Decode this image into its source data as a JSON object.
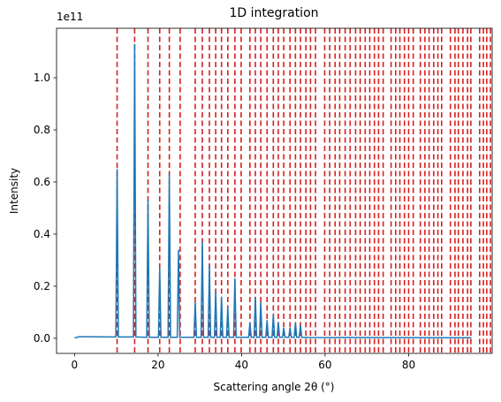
{
  "chart_data": {
    "type": "line",
    "title": "1D integration",
    "x_label": "Scattering angle 2θ (°)",
    "y_label": "Intensity",
    "y_offset_label": "1e11",
    "xlim": [
      -4.3,
      100
    ],
    "ylim": [
      -0.058,
      1.19
    ],
    "xticks": [
      0,
      20,
      40,
      60,
      80
    ],
    "yticks": [
      {
        "value": 0,
        "label": "0.0"
      },
      0.2,
      0.4,
      0.6,
      0.8,
      {
        "value": 1,
        "label": "1.0"
      }
    ],
    "series": [
      {
        "color": "#1f77b4",
        "x": [
          0,
          0.5,
          1,
          3,
          9.9,
          10.2,
          10.5,
          14.1,
          14.4,
          14.7,
          17.3,
          17.6,
          17.9,
          20.1,
          20.4,
          20.7,
          22.4,
          22.7,
          23.0,
          24.6,
          24.9,
          25.2,
          28.6,
          28.9,
          29.2,
          30.3,
          30.6,
          30.9,
          32.0,
          32.3,
          32.6,
          33.5,
          33.8,
          34.1,
          34.9,
          35.2,
          35.5,
          36.4,
          36.7,
          37.0,
          38.1,
          38.4,
          38.7,
          41.7,
          42.0,
          42.3,
          43.0,
          43.3,
          43.6,
          44.3,
          44.6,
          44.9,
          45.8,
          46.1,
          46.4,
          47.3,
          47.6,
          47.9,
          48.5,
          48.8,
          49.1,
          49.8,
          50.1,
          50.4,
          51.3,
          51.6,
          51.9,
          52.6,
          52.9,
          53.2,
          53.8,
          54.1,
          54.4,
          56,
          95
        ],
        "values": [
          0.002,
          0.003,
          0.006,
          0.006,
          0.005,
          0.65,
          0.005,
          0.005,
          1.13,
          0.005,
          0.004,
          0.53,
          0.004,
          0.004,
          0.27,
          0.004,
          0.004,
          0.63,
          0.004,
          0.004,
          0.34,
          0.004,
          0.004,
          0.14,
          0.004,
          0.004,
          0.37,
          0.004,
          0.004,
          0.28,
          0.004,
          0.004,
          0.18,
          0.004,
          0.004,
          0.16,
          0.004,
          0.004,
          0.12,
          0.004,
          0.004,
          0.23,
          0.004,
          0.004,
          0.06,
          0.004,
          0.004,
          0.16,
          0.004,
          0.004,
          0.14,
          0.004,
          0.004,
          0.07,
          0.004,
          0.004,
          0.09,
          0.004,
          0.004,
          0.06,
          0.004,
          0.004,
          0.04,
          0.004,
          0.004,
          0.04,
          0.004,
          0.004,
          0.06,
          0.004,
          0.004,
          0.05,
          0.004,
          0.003,
          0.002
        ]
      }
    ],
    "vlines_color": "#d62020",
    "vlines": [
      10.2,
      14.4,
      17.6,
      20.4,
      22.7,
      25.3,
      28.9,
      30.6,
      32.3,
      33.8,
      35.2,
      36.7,
      38.4,
      39.9,
      42.0,
      43.3,
      44.6,
      46.1,
      47.6,
      48.8,
      50.1,
      51.6,
      52.9,
      54.1,
      55.4,
      56.5,
      57.7,
      59.9,
      61.1,
      62.4,
      63.5,
      64.8,
      66.0,
      67.3,
      68.4,
      69.6,
      70.7,
      71.8,
      72.8,
      73.9,
      75.8,
      76.9,
      77.9,
      79.0,
      80.0,
      81.1,
      82.8,
      83.9,
      84.9,
      86.0,
      87.0,
      87.9,
      90.0,
      91.1,
      91.9,
      93.0,
      94.1,
      94.9,
      97.0,
      97.9,
      98.7,
      99.6
    ]
  }
}
